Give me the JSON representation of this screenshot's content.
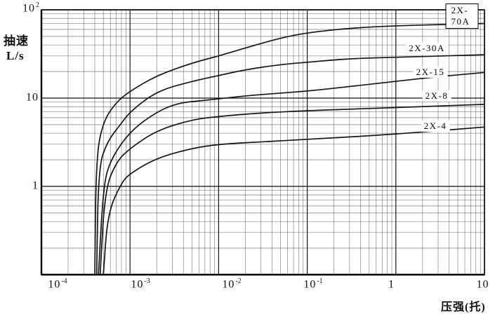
{
  "axes": {
    "y_title_line1": "抽速",
    "y_title_line2": "L/s",
    "x_title": "压强(托)",
    "x_ticks": [
      {
        "base": "10",
        "exp": "-4"
      },
      {
        "base": "10",
        "exp": "-3"
      },
      {
        "base": "10",
        "exp": "-2"
      },
      {
        "base": "10",
        "exp": "-1"
      },
      {
        "base": "1",
        "exp": ""
      },
      {
        "base": "10",
        "exp": ""
      }
    ],
    "y_ticks": [
      {
        "base": "10",
        "exp": "2"
      },
      {
        "base": "10",
        "exp": ""
      },
      {
        "base": "1",
        "exp": ""
      }
    ]
  },
  "chart_data": {
    "type": "line",
    "title": "",
    "xlabel": "压强(托)",
    "ylabel": "抽速 L/s",
    "x_scale": "log",
    "y_scale": "log",
    "xlim": [
      0.0001,
      10
    ],
    "ylim": [
      0.1,
      100
    ],
    "grid": "log-log graph paper: major decade lines plus minor lines at 2-9 of each decade",
    "legend_position": "labels placed at right end of each curve; top label boxed",
    "series": [
      {
        "name": "2X-70A",
        "boxed_label": true,
        "points": [
          [
            0.0004,
            0.1
          ],
          [
            0.000415,
            2.2
          ],
          [
            0.0005,
            5.5
          ],
          [
            0.0007,
            9
          ],
          [
            0.001,
            12
          ],
          [
            0.002,
            18
          ],
          [
            0.005,
            25
          ],
          [
            0.01,
            30
          ],
          [
            0.02,
            37
          ],
          [
            0.05,
            48
          ],
          [
            0.1,
            55
          ],
          [
            0.3,
            62
          ],
          [
            1,
            66
          ],
          [
            3,
            68
          ],
          [
            10,
            70
          ]
        ]
      },
      {
        "name": "2X-30A",
        "boxed_label": false,
        "points": [
          [
            0.00042,
            0.1
          ],
          [
            0.00044,
            1.6
          ],
          [
            0.00055,
            3.2
          ],
          [
            0.0008,
            5.2
          ],
          [
            0.001,
            7
          ],
          [
            0.002,
            12
          ],
          [
            0.005,
            15.5
          ],
          [
            0.01,
            18
          ],
          [
            0.02,
            21
          ],
          [
            0.05,
            24
          ],
          [
            0.1,
            25.5
          ],
          [
            0.3,
            28
          ],
          [
            1,
            29
          ],
          [
            10,
            31
          ]
        ]
      },
      {
        "name": "2X-15",
        "boxed_label": false,
        "points": [
          [
            0.00044,
            0.1
          ],
          [
            0.0005,
            1
          ],
          [
            0.0006,
            2
          ],
          [
            0.001,
            4.2
          ],
          [
            0.002,
            7
          ],
          [
            0.0035,
            8.8
          ],
          [
            0.006,
            9.3
          ],
          [
            0.01,
            9.8
          ],
          [
            0.02,
            10.6
          ],
          [
            0.05,
            11.4
          ],
          [
            0.1,
            12
          ],
          [
            0.3,
            13.5
          ],
          [
            1,
            15.5
          ],
          [
            3,
            17.5
          ],
          [
            10,
            19.5
          ]
        ]
      },
      {
        "name": "2X-8",
        "boxed_label": false,
        "points": [
          [
            0.00046,
            0.1
          ],
          [
            0.00052,
            0.9
          ],
          [
            0.0007,
            1.9
          ],
          [
            0.001,
            2.7
          ],
          [
            0.002,
            4.3
          ],
          [
            0.005,
            5.7
          ],
          [
            0.01,
            6.2
          ],
          [
            0.03,
            6.8
          ],
          [
            0.1,
            7.2
          ],
          [
            0.3,
            7.5
          ],
          [
            1,
            7.8
          ],
          [
            10,
            8.5
          ]
        ]
      },
      {
        "name": "2X-4",
        "boxed_label": false,
        "points": [
          [
            0.0005,
            0.1
          ],
          [
            0.00056,
            0.5
          ],
          [
            0.0008,
            1.1
          ],
          [
            0.001,
            1.4
          ],
          [
            0.002,
            2.1
          ],
          [
            0.005,
            2.7
          ],
          [
            0.01,
            3.0
          ],
          [
            0.03,
            3.2
          ],
          [
            0.1,
            3.4
          ],
          [
            1,
            3.9
          ],
          [
            10,
            4.7
          ]
        ]
      }
    ],
    "colors": {
      "curve": "#151515",
      "grid_major": "#0d0d0d",
      "grid_minor": "#4a4a4a",
      "frame": "#000000",
      "background": "#ffffff"
    }
  }
}
